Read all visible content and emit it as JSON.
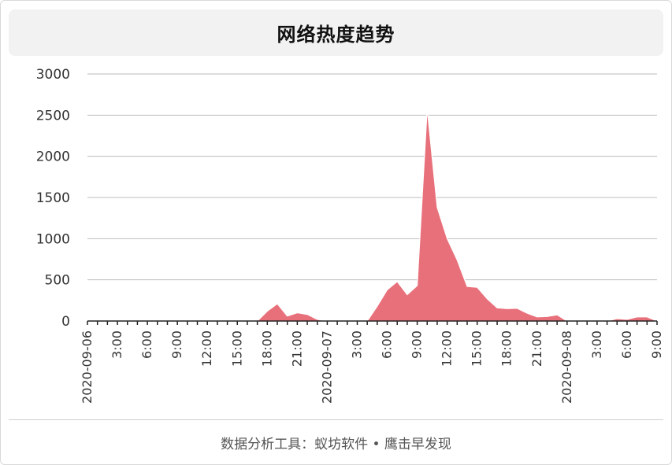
{
  "chart_title": "网络热度趋势",
  "footer": "数据分析工具：蚁坊软件 • 鹰击早发现",
  "colors": {
    "area": "#e8707b",
    "area_stroke": "#ffffff",
    "grid": "#bbbbbb",
    "axis": "#222222"
  },
  "chart_data": {
    "type": "area",
    "title": "网络热度趋势",
    "xlabel": "",
    "ylabel": "",
    "ylim": [
      0,
      3000
    ],
    "yticks": [
      0,
      500,
      1000,
      1500,
      2000,
      2500,
      3000
    ],
    "grid": true,
    "x_range_hours": [
      0,
      57
    ],
    "xtick_labels": [
      "2020-09-06",
      "3:00",
      "6:00",
      "9:00",
      "12:00",
      "15:00",
      "18:00",
      "21:00",
      "2020-09-07",
      "3:00",
      "6:00",
      "9:00",
      "12:00",
      "15:00",
      "18:00",
      "21:00",
      "2020-09-08",
      "3:00",
      "6:00",
      "9:00"
    ],
    "series": [
      {
        "hours": [
          0,
          1,
          2,
          3,
          4,
          5,
          6,
          7,
          8,
          9,
          10,
          11,
          12,
          13,
          14,
          15,
          16,
          17,
          18,
          19,
          20,
          21,
          22,
          23,
          24,
          25,
          26,
          27,
          28,
          29,
          30,
          31,
          32,
          33,
          34,
          35,
          36,
          37,
          38,
          39,
          40,
          41,
          42,
          43,
          44,
          45,
          46,
          47,
          48,
          49,
          50,
          51,
          52,
          53,
          54,
          55,
          56,
          57
        ],
        "values": [
          0,
          0,
          0,
          0,
          0,
          0,
          0,
          0,
          0,
          0,
          0,
          0,
          0,
          0,
          0,
          0,
          0,
          0,
          120,
          210,
          60,
          100,
          80,
          20,
          0,
          0,
          0,
          0,
          0,
          180,
          380,
          480,
          320,
          430,
          2580,
          1380,
          1000,
          740,
          420,
          410,
          270,
          160,
          150,
          155,
          95,
          50,
          55,
          75,
          0,
          0,
          0,
          0,
          0,
          30,
          20,
          50,
          50,
          0
        ]
      }
    ]
  }
}
